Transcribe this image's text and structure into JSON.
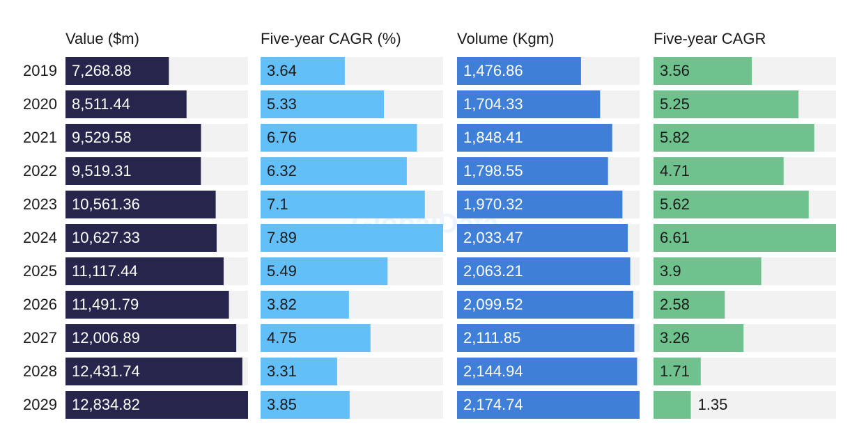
{
  "chart_data": {
    "type": "bar",
    "layout": "panels",
    "watermark": "GlobalData",
    "categories": [
      "2019",
      "2020",
      "2021",
      "2022",
      "2023",
      "2024",
      "2025",
      "2026",
      "2027",
      "2028",
      "2029"
    ],
    "series": [
      {
        "name": "Value ($m)",
        "color": "#26264d",
        "values": [
          7268.88,
          8511.44,
          9529.58,
          9519.31,
          10561.36,
          10627.33,
          11117.44,
          11491.79,
          12006.89,
          12431.74,
          12834.82
        ],
        "value_labels": [
          "7,268.88",
          "8,511.44",
          "9,529.58",
          "9,519.31",
          "10,561.36",
          "10,627.33",
          "11,117.44",
          "11,491.79",
          "12,006.89",
          "12,431.74",
          "12,834.82"
        ]
      },
      {
        "name": "Five-year CAGR (%)",
        "color": "#62bff7",
        "values": [
          3.64,
          5.33,
          6.76,
          6.32,
          7.1,
          7.89,
          5.49,
          3.82,
          4.75,
          3.31,
          3.85
        ]
      },
      {
        "name": "Volume (Kgm)",
        "color": "#3f7fd8",
        "values": [
          1476.86,
          1704.33,
          1848.41,
          1798.55,
          1970.32,
          2033.47,
          2063.21,
          2099.52,
          2111.85,
          2144.94,
          2174.74
        ],
        "value_labels": [
          "1,476.86",
          "1,704.33",
          "1,848.41",
          "1,798.55",
          "1,970.32",
          "2,033.47",
          "2,063.21",
          "2,099.52",
          "2,111.85",
          "2,144.94",
          "2,174.74"
        ]
      },
      {
        "name": "Five-year CAGR",
        "color": "#6fc28e",
        "values": [
          3.56,
          5.25,
          5.82,
          4.71,
          5.62,
          6.61,
          3.9,
          2.58,
          3.26,
          1.71,
          1.35
        ]
      }
    ]
  }
}
